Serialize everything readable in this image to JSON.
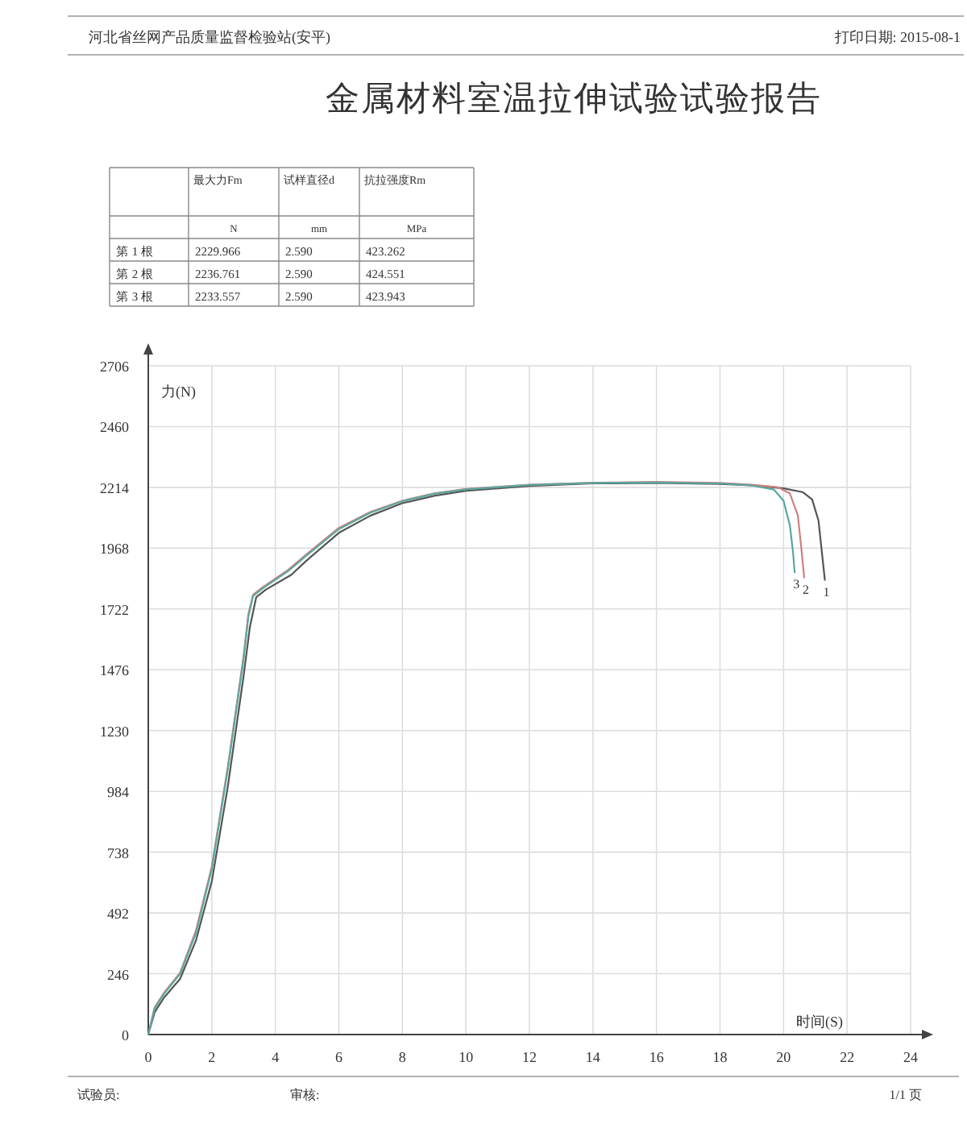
{
  "chart_data": {
    "type": "line",
    "title": "金属材料室温拉伸试验试验报告",
    "xlabel": "时间(S)",
    "ylabel": "力(N)",
    "xlim": [
      0,
      24
    ],
    "ylim": [
      0,
      2706
    ],
    "xticks": [
      0,
      2,
      4,
      6,
      8,
      10,
      12,
      14,
      16,
      18,
      20,
      22,
      24
    ],
    "yticks": [
      0,
      246,
      492,
      738,
      984,
      1230,
      1476,
      1722,
      1968,
      2214,
      2460,
      2706
    ],
    "grid": true,
    "marker": "none",
    "line_style": "solid",
    "series": [
      {
        "color": "#555555",
        "x": [
          0,
          0.2,
          0.5,
          1,
          1.5,
          2,
          2.5,
          3,
          3.2,
          3.4,
          3.7,
          4.5,
          5,
          6,
          7,
          8,
          9,
          10,
          12,
          14,
          16,
          18,
          19,
          20,
          20.6,
          20.9,
          21.1,
          21.2,
          21.3
        ],
        "values": [
          0,
          90,
          150,
          225,
          380,
          620,
          1000,
          1450,
          1650,
          1770,
          1800,
          1860,
          1920,
          2030,
          2100,
          2150,
          2180,
          2200,
          2220,
          2230,
          2232,
          2228,
          2222,
          2210,
          2195,
          2165,
          2080,
          1960,
          1840
        ]
      },
      {
        "color": "#d08080",
        "x": [
          0,
          0.2,
          0.5,
          1,
          1.5,
          2,
          2.5,
          3,
          3.15,
          3.3,
          3.6,
          4.4,
          5,
          6,
          7,
          8,
          9,
          10,
          12,
          14,
          16,
          18,
          19,
          19.8,
          20.2,
          20.45,
          20.55,
          20.65
        ],
        "values": [
          0,
          110,
          170,
          250,
          420,
          680,
          1080,
          1530,
          1700,
          1780,
          1810,
          1880,
          1945,
          2050,
          2115,
          2160,
          2190,
          2208,
          2225,
          2233,
          2236,
          2232,
          2225,
          2215,
          2190,
          2100,
          1980,
          1850
        ]
      },
      {
        "color": "#5aa8a0",
        "x": [
          0,
          0.2,
          0.5,
          1,
          1.5,
          2,
          2.5,
          3,
          3.15,
          3.3,
          3.6,
          4.4,
          5,
          6,
          7,
          8,
          9,
          10,
          12,
          14,
          16,
          18,
          19,
          19.7,
          20.0,
          20.2,
          20.3,
          20.35
        ],
        "values": [
          0,
          105,
          165,
          245,
          410,
          670,
          1070,
          1520,
          1690,
          1775,
          1805,
          1875,
          1940,
          2045,
          2112,
          2158,
          2188,
          2206,
          2224,
          2232,
          2234,
          2230,
          2222,
          2205,
          2160,
          2060,
          1950,
          1870
        ]
      }
    ],
    "annotations": [
      "河北省丝网产品质量监督检验站(安平)",
      "打印日期: 2015-08-1",
      "最大力Fm",
      "试样直径d",
      "抗拉强度Rm",
      "N",
      "mm",
      "MPa",
      "第 1 根",
      "2229.966",
      "2.590",
      "423.262",
      "第 2 根",
      "2236.761",
      "2.590",
      "424.551",
      "第 3 根",
      "2233.557",
      "2.590",
      "423.943",
      "试验员:",
      "审核:",
      "1/1 页",
      {
        "text": "1",
        "x": 21.3,
        "y": 1840
      },
      {
        "text": "2",
        "x": 20.65,
        "y": 1850
      },
      {
        "text": "3",
        "x": 20.35,
        "y": 1870
      }
    ]
  }
}
